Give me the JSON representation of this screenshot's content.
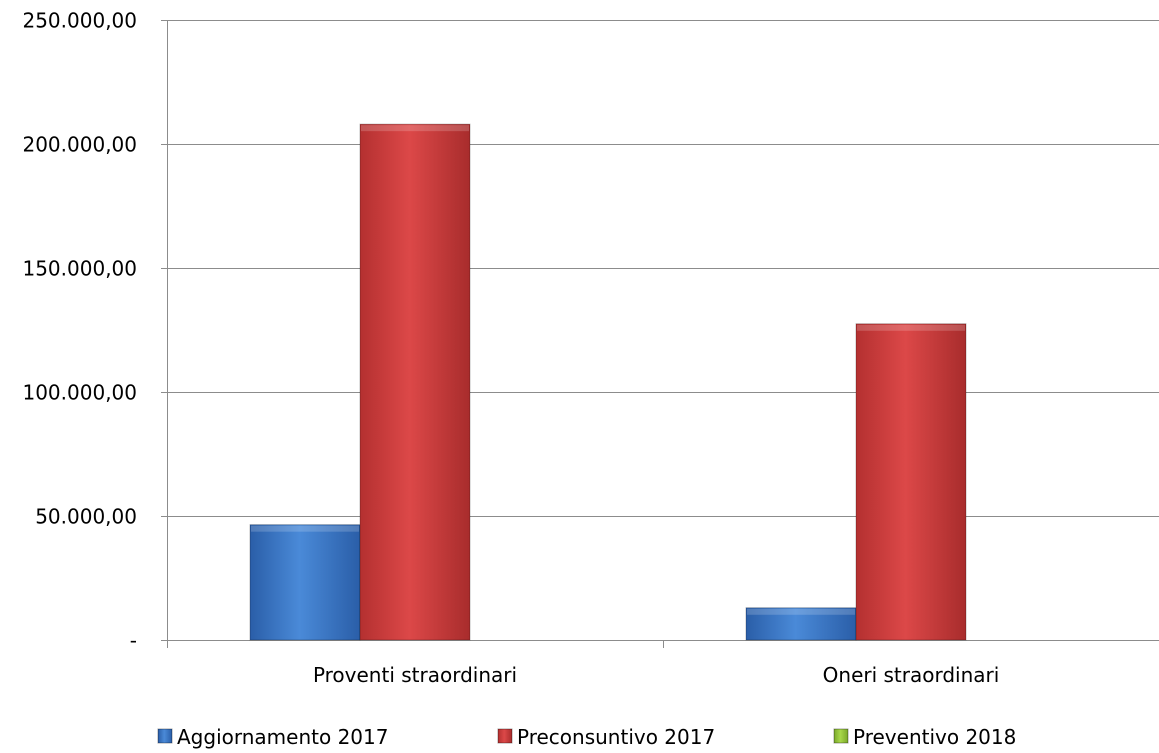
{
  "chart_data": {
    "type": "bar",
    "title": "",
    "xlabel": "",
    "ylabel": "",
    "categories": [
      "Proventi straordinari",
      "Oneri straordinari"
    ],
    "series": [
      {
        "name": "Aggiornamento 2017",
        "values": [
          46500,
          13000
        ],
        "color": "#3a78c8"
      },
      {
        "name": "Preconsuntivo 2017",
        "values": [
          208000,
          127500
        ],
        "color": "#c83a3a"
      },
      {
        "name": "Preventivo 2018",
        "values": [
          0,
          0
        ],
        "color": "#98c83a"
      }
    ],
    "ylim": [
      0,
      250000
    ],
    "yticks": [
      0,
      50000,
      100000,
      150000,
      200000,
      250000
    ],
    "ytick_labels": [
      "-",
      "50.000,00",
      "100.000,00",
      "150.000,00",
      "200.000,00",
      "250.000,00"
    ],
    "grid": true,
    "legend_position": "bottom"
  }
}
